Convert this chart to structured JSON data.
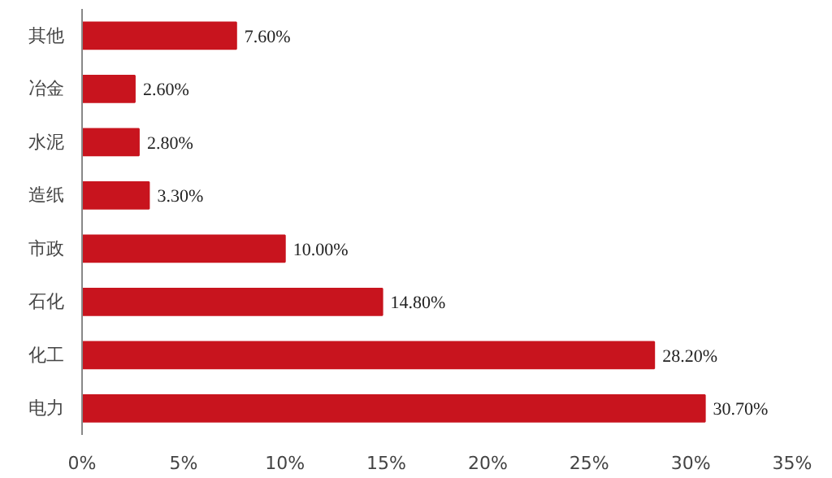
{
  "chart_data": {
    "type": "bar",
    "orientation": "horizontal",
    "categories": [
      "其他",
      "冶金",
      "水泥",
      "造纸",
      "市政",
      "石化",
      "化工",
      "电力"
    ],
    "values": [
      7.6,
      2.6,
      2.8,
      3.3,
      10.0,
      14.8,
      28.2,
      30.7
    ],
    "value_labels": [
      "7.60%",
      "2.60%",
      "2.80%",
      "3.30%",
      "10.00%",
      "14.80%",
      "28.20%",
      "30.70%"
    ],
    "color": "#c8141e",
    "xlim": [
      0,
      35
    ],
    "xticks": [
      {
        "value": 0,
        "label": "0%"
      },
      {
        "value": 5,
        "label": "5%"
      },
      {
        "value": 10,
        "label": "10%"
      },
      {
        "value": 15,
        "label": "15%"
      },
      {
        "value": 20,
        "label": "20%"
      },
      {
        "value": 25,
        "label": "25%"
      },
      {
        "value": 30,
        "label": "30%"
      },
      {
        "value": 35,
        "label": "35%"
      }
    ],
    "grid": false
  }
}
